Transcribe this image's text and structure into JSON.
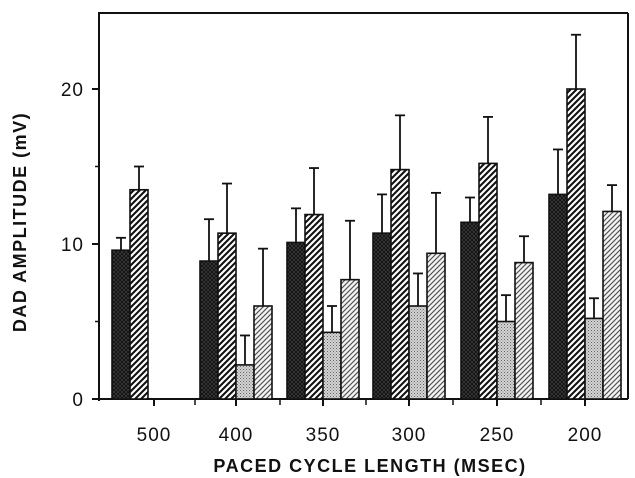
{
  "chart_data": {
    "type": "bar",
    "title": "",
    "xlabel": "PACED CYCLE LENGTH (MSEC)",
    "ylabel": "DAD AMPLITUDE (mV)",
    "ylim": [
      0,
      24
    ],
    "yticks": [
      "0",
      "10",
      "20"
    ],
    "categories": [
      "500",
      "400",
      "350",
      "300",
      "250",
      "200"
    ],
    "error_bars": "one-sided (upper)",
    "grid": false,
    "legend": "none",
    "series": [
      {
        "values": [
          9.6,
          8.9,
          10.1,
          10.7,
          11.4,
          13.2
        ],
        "errors": [
          0.8,
          2.7,
          2.2,
          2.5,
          1.6,
          2.9
        ],
        "pattern": "dark-crosshatch",
        "color": "#333333"
      },
      {
        "values": [
          13.5,
          10.7,
          11.9,
          14.8,
          15.2,
          20.0
        ],
        "errors": [
          1.5,
          3.2,
          3.0,
          3.5,
          3.0,
          3.5
        ],
        "pattern": "diagonal-hatch",
        "color": "#222222"
      },
      {
        "values": [
          null,
          2.2,
          4.3,
          6.0,
          5.0,
          5.2
        ],
        "errors": [
          null,
          1.9,
          1.7,
          2.1,
          1.7,
          1.3
        ],
        "pattern": "light-stipple",
        "color": "#b8b8b8"
      },
      {
        "values": [
          null,
          6.0,
          7.7,
          9.4,
          8.8,
          12.1
        ],
        "errors": [
          null,
          3.7,
          3.8,
          3.9,
          1.7,
          1.7
        ],
        "pattern": "light-hatch",
        "color": "#777777"
      }
    ]
  }
}
